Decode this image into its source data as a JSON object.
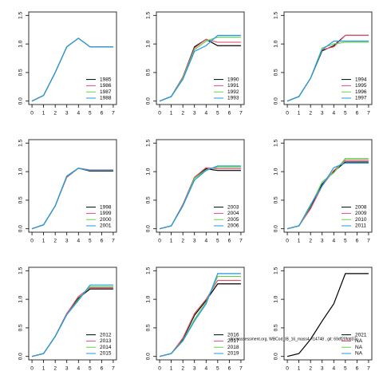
{
  "chart_data": [
    {
      "type": "line",
      "x": [
        0,
        1,
        2,
        3,
        4,
        5,
        6,
        7
      ],
      "xlim": [
        -0.28,
        7.28
      ],
      "ylim": [
        -0.06,
        1.56
      ],
      "xticks": [
        0,
        1,
        2,
        3,
        4,
        5,
        6,
        7
      ],
      "yticks": [
        {
          "value": 0,
          "label": "0.0"
        },
        {
          "value": 0.5,
          "label": "0.5"
        },
        {
          "value": 1,
          "label": "1.0"
        },
        {
          "value": 1.5,
          "label": "1.5"
        }
      ],
      "legend": "bottom-right",
      "series": [
        {
          "name": "1985",
          "color": "#000000",
          "values": [
            0,
            0.1,
            0.5,
            0.95,
            1.1,
            0.95,
            0.95,
            0.95
          ]
        },
        {
          "name": "1986",
          "color": "#df536b",
          "values": [
            0,
            0.1,
            0.5,
            0.95,
            1.1,
            0.95,
            0.95,
            0.95
          ]
        },
        {
          "name": "1987",
          "color": "#61d04f",
          "values": [
            0,
            0.1,
            0.5,
            0.95,
            1.1,
            0.95,
            0.95,
            0.95
          ]
        },
        {
          "name": "1988",
          "color": "#2297e6",
          "values": [
            0,
            0.1,
            0.5,
            0.95,
            1.1,
            0.95,
            0.95,
            0.95
          ]
        }
      ]
    },
    {
      "type": "line",
      "x": [
        0,
        1,
        2,
        3,
        4,
        5,
        6,
        7
      ],
      "xlim": [
        -0.28,
        7.28
      ],
      "ylim": [
        -0.06,
        1.56
      ],
      "xticks": [
        0,
        1,
        2,
        3,
        4,
        5,
        6,
        7
      ],
      "yticks": [
        {
          "value": 0,
          "label": "0.0"
        },
        {
          "value": 0.5,
          "label": "0.5"
        },
        {
          "value": 1,
          "label": "1.0"
        },
        {
          "value": 1.5,
          "label": "1.5"
        }
      ],
      "legend": "bottom-right",
      "series": [
        {
          "name": "1990",
          "color": "#000000",
          "values": [
            0,
            0.08,
            0.42,
            0.95,
            1.08,
            0.97,
            0.97,
            0.97
          ]
        },
        {
          "name": "1991",
          "color": "#df536b",
          "values": [
            0,
            0.08,
            0.42,
            0.93,
            1.08,
            1.03,
            1.03,
            1.03
          ]
        },
        {
          "name": "1992",
          "color": "#61d04f",
          "values": [
            0,
            0.08,
            0.4,
            0.9,
            1.05,
            1.12,
            1.12,
            1.12
          ]
        },
        {
          "name": "1993",
          "color": "#2297e6",
          "values": [
            0,
            0.08,
            0.38,
            0.87,
            0.97,
            1.15,
            1.15,
            1.15
          ]
        }
      ]
    },
    {
      "type": "line",
      "x": [
        0,
        1,
        2,
        3,
        4,
        5,
        6,
        7
      ],
      "xlim": [
        -0.28,
        7.28
      ],
      "ylim": [
        -0.06,
        1.56
      ],
      "xticks": [
        0,
        1,
        2,
        3,
        4,
        5,
        6,
        7
      ],
      "yticks": [
        {
          "value": 0,
          "label": "0.0"
        },
        {
          "value": 0.5,
          "label": "0.5"
        },
        {
          "value": 1,
          "label": "1.0"
        },
        {
          "value": 1.5,
          "label": "1.5"
        }
      ],
      "legend": "bottom-right",
      "series": [
        {
          "name": "1994",
          "color": "#000000",
          "values": [
            0,
            0.08,
            0.4,
            0.88,
            0.97,
            1.15,
            1.15,
            1.15
          ]
        },
        {
          "name": "1995",
          "color": "#df536b",
          "values": [
            0,
            0.08,
            0.4,
            0.9,
            0.95,
            1.15,
            1.15,
            1.15
          ]
        },
        {
          "name": "1996",
          "color": "#61d04f",
          "values": [
            0,
            0.08,
            0.4,
            0.93,
            1.0,
            1.03,
            1.03,
            1.03
          ]
        },
        {
          "name": "1997",
          "color": "#2297e6",
          "values": [
            0,
            0.08,
            0.4,
            0.9,
            1.05,
            1.05,
            1.05,
            1.05
          ]
        }
      ]
    },
    {
      "type": "line",
      "x": [
        0,
        1,
        2,
        3,
        4,
        5,
        6,
        7
      ],
      "xlim": [
        -0.28,
        7.28
      ],
      "ylim": [
        -0.06,
        1.56
      ],
      "xticks": [
        0,
        1,
        2,
        3,
        4,
        5,
        6,
        7
      ],
      "yticks": [
        {
          "value": 0,
          "label": "0.0"
        },
        {
          "value": 0.5,
          "label": "0.5"
        },
        {
          "value": 1,
          "label": "1.0"
        },
        {
          "value": 1.5,
          "label": "1.5"
        }
      ],
      "legend": "bottom-right",
      "series": [
        {
          "name": "1998",
          "color": "#000000",
          "values": [
            0,
            0.07,
            0.4,
            0.92,
            1.06,
            1.01,
            1.01,
            1.01
          ]
        },
        {
          "name": "1999",
          "color": "#df536b",
          "values": [
            0,
            0.07,
            0.4,
            0.9,
            1.06,
            1.03,
            1.03,
            1.03
          ]
        },
        {
          "name": "2000",
          "color": "#61d04f",
          "values": [
            0,
            0.07,
            0.4,
            0.92,
            1.06,
            1.02,
            1.02,
            1.02
          ]
        },
        {
          "name": "2001",
          "color": "#2297e6",
          "values": [
            0,
            0.07,
            0.4,
            0.92,
            1.06,
            1.02,
            1.02,
            1.02
          ]
        }
      ]
    },
    {
      "type": "line",
      "x": [
        0,
        1,
        2,
        3,
        4,
        5,
        6,
        7
      ],
      "xlim": [
        -0.28,
        7.28
      ],
      "ylim": [
        -0.06,
        1.56
      ],
      "xticks": [
        0,
        1,
        2,
        3,
        4,
        5,
        6,
        7
      ],
      "yticks": [
        {
          "value": 0,
          "label": "0.0"
        },
        {
          "value": 0.5,
          "label": "0.5"
        },
        {
          "value": 1,
          "label": "1.0"
        },
        {
          "value": 1.5,
          "label": "1.5"
        }
      ],
      "legend": "bottom-right",
      "series": [
        {
          "name": "2003",
          "color": "#000000",
          "values": [
            0,
            0.05,
            0.42,
            0.9,
            1.05,
            1.02,
            1.02,
            1.02
          ]
        },
        {
          "name": "2004",
          "color": "#df536b",
          "values": [
            0,
            0.05,
            0.42,
            0.9,
            1.07,
            1.05,
            1.05,
            1.05
          ]
        },
        {
          "name": "2005",
          "color": "#61d04f",
          "values": [
            0,
            0.05,
            0.4,
            0.88,
            1.03,
            1.08,
            1.08,
            1.08
          ]
        },
        {
          "name": "2006",
          "color": "#2297e6",
          "values": [
            0,
            0.05,
            0.4,
            0.85,
            1.02,
            1.1,
            1.1,
            1.1
          ]
        }
      ]
    },
    {
      "type": "line",
      "x": [
        0,
        1,
        2,
        3,
        4,
        5,
        6,
        7
      ],
      "xlim": [
        -0.28,
        7.28
      ],
      "ylim": [
        -0.06,
        1.56
      ],
      "xticks": [
        0,
        1,
        2,
        3,
        4,
        5,
        6,
        7
      ],
      "yticks": [
        {
          "value": 0,
          "label": "0.0"
        },
        {
          "value": 0.5,
          "label": "0.5"
        },
        {
          "value": 1,
          "label": "1.0"
        },
        {
          "value": 1.5,
          "label": "1.5"
        }
      ],
      "legend": "bottom-right",
      "series": [
        {
          "name": "2008",
          "color": "#000000",
          "values": [
            0,
            0.05,
            0.38,
            0.78,
            1.0,
            1.17,
            1.17,
            1.17
          ]
        },
        {
          "name": "2009",
          "color": "#df536b",
          "values": [
            0,
            0.05,
            0.35,
            0.75,
            1.02,
            1.2,
            1.2,
            1.2
          ]
        },
        {
          "name": "2010",
          "color": "#61d04f",
          "values": [
            0,
            0.05,
            0.4,
            0.82,
            0.98,
            1.23,
            1.23,
            1.23
          ]
        },
        {
          "name": "2011",
          "color": "#2297e6",
          "values": [
            0,
            0.05,
            0.42,
            0.75,
            1.07,
            1.15,
            1.15,
            1.15
          ]
        }
      ]
    },
    {
      "type": "line",
      "x": [
        0,
        1,
        2,
        3,
        4,
        5,
        6,
        7
      ],
      "xlim": [
        -0.28,
        7.28
      ],
      "ylim": [
        -0.06,
        1.56
      ],
      "xticks": [
        0,
        1,
        2,
        3,
        4,
        5,
        6,
        7
      ],
      "yticks": [
        {
          "value": 0,
          "label": "0.0"
        },
        {
          "value": 0.5,
          "label": "0.5"
        },
        {
          "value": 1,
          "label": "1.0"
        },
        {
          "value": 1.5,
          "label": "1.5"
        }
      ],
      "legend": "bottom-right",
      "series": [
        {
          "name": "2012",
          "color": "#000000",
          "values": [
            0,
            0.05,
            0.35,
            0.75,
            1.02,
            1.18,
            1.18,
            1.18
          ]
        },
        {
          "name": "2013",
          "color": "#df536b",
          "values": [
            0,
            0.05,
            0.35,
            0.75,
            1.05,
            1.2,
            1.2,
            1.2
          ]
        },
        {
          "name": "2014",
          "color": "#61d04f",
          "values": [
            0,
            0.05,
            0.35,
            0.73,
            1.0,
            1.22,
            1.22,
            1.22
          ]
        },
        {
          "name": "2015",
          "color": "#2297e6",
          "values": [
            0,
            0.05,
            0.35,
            0.73,
            0.98,
            1.25,
            1.25,
            1.25
          ]
        }
      ]
    },
    {
      "type": "line",
      "x": [
        0,
        1,
        2,
        3,
        4,
        5,
        6,
        7
      ],
      "xlim": [
        -0.28,
        7.28
      ],
      "ylim": [
        -0.06,
        1.56
      ],
      "xticks": [
        0,
        1,
        2,
        3,
        4,
        5,
        6,
        7
      ],
      "yticks": [
        {
          "value": 0,
          "label": "0.0"
        },
        {
          "value": 0.5,
          "label": "0.5"
        },
        {
          "value": 1,
          "label": "1.0"
        },
        {
          "value": 1.5,
          "label": "1.5"
        }
      ],
      "legend": "bottom-right",
      "series": [
        {
          "name": "2016",
          "color": "#000000",
          "values": [
            0,
            0.05,
            0.3,
            0.72,
            0.98,
            1.27,
            1.27,
            1.27
          ]
        },
        {
          "name": "2017",
          "color": "#df536b",
          "values": [
            0,
            0.05,
            0.32,
            0.75,
            1.0,
            1.33,
            1.33,
            1.33
          ]
        },
        {
          "name": "2018",
          "color": "#61d04f",
          "values": [
            0,
            0.05,
            0.28,
            0.65,
            0.95,
            1.4,
            1.4,
            1.4
          ]
        },
        {
          "name": "2019",
          "color": "#2297e6",
          "values": [
            0,
            0.05,
            0.27,
            0.62,
            0.92,
            1.45,
            1.45,
            1.45
          ]
        }
      ]
    },
    {
      "type": "line",
      "x": [
        0,
        1,
        2,
        3,
        4,
        5,
        6,
        7
      ],
      "xlim": [
        -0.28,
        7.28
      ],
      "ylim": [
        -0.06,
        1.56
      ],
      "xticks": [
        0,
        1,
        2,
        3,
        4,
        5,
        6,
        7
      ],
      "yticks": [
        {
          "value": 0,
          "label": "0.0"
        },
        {
          "value": 0.5,
          "label": "0.5"
        },
        {
          "value": 1,
          "label": "1.0"
        },
        {
          "value": 1.5,
          "label": "1.5"
        }
      ],
      "legend": "bottom-right",
      "series": [
        {
          "name": "2021",
          "color": "#000000",
          "values": [
            0,
            0.05,
            0.3,
            0.62,
            0.92,
            1.45,
            1.45,
            1.45
          ]
        },
        {
          "name": "NA",
          "color": "#df536b",
          "values": [
            null,
            null,
            null,
            null,
            null,
            null,
            null,
            null
          ]
        },
        {
          "name": "NA",
          "color": "#61d04f",
          "values": [
            null,
            null,
            null,
            null,
            null,
            null,
            null,
            null
          ]
        },
        {
          "name": "NA",
          "color": "#2297e6",
          "values": [
            null,
            null,
            null,
            null,
            null,
            null,
            null,
            null
          ]
        }
      ]
    }
  ],
  "footer": "stockassessment.org, WBCod_IB_16_mass4, r14748 , git: 69df20fdd37c"
}
